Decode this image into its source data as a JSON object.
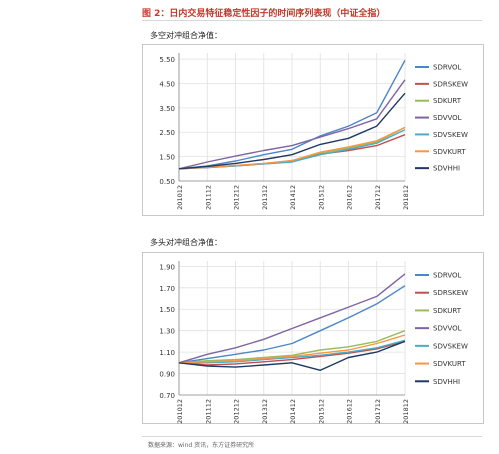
{
  "figure_title": "图 2：日内交易特征稳定性因子的时间序列表现（中证全指）",
  "source": "数据来源：wind 资讯，东方证券研究所",
  "colors": {
    "SDRVOL": "#4a86c8",
    "SDRSKEW": "#c0504d",
    "SDKURT": "#9bbb59",
    "SDVVOL": "#8064a2",
    "SDVSKEW": "#4bacc6",
    "SDVKURT": "#f79646",
    "SDVHHI": "#1f3864"
  },
  "chart_data": [
    {
      "type": "line",
      "title": "多空对冲组合净值：",
      "x": [
        "201012",
        "201112",
        "201212",
        "201312",
        "201412",
        "201512",
        "201612",
        "201712",
        "201812"
      ],
      "ylim": [
        0.5,
        5.75
      ],
      "yticks": [
        0.5,
        1.5,
        2.5,
        3.5,
        4.5,
        5.5
      ],
      "ytick_labels": [
        "0.50",
        "1.50",
        "2.50",
        "3.50",
        "4.50",
        "5.50"
      ],
      "grid": true,
      "legend": "right",
      "series": [
        {
          "name": "SDRVOL",
          "values": [
            1.0,
            1.12,
            1.32,
            1.58,
            1.8,
            2.35,
            2.75,
            3.3,
            5.45
          ]
        },
        {
          "name": "SDRSKEW",
          "values": [
            1.0,
            1.05,
            1.12,
            1.2,
            1.3,
            1.6,
            1.75,
            1.95,
            2.4
          ]
        },
        {
          "name": "SDKURT",
          "values": [
            1.0,
            1.06,
            1.13,
            1.22,
            1.32,
            1.65,
            1.85,
            2.1,
            2.7
          ]
        },
        {
          "name": "SDVVOL",
          "values": [
            1.0,
            1.28,
            1.52,
            1.75,
            1.95,
            2.3,
            2.65,
            3.05,
            4.65
          ]
        },
        {
          "name": "SDVSKEW",
          "values": [
            1.0,
            1.05,
            1.12,
            1.2,
            1.28,
            1.58,
            1.8,
            2.05,
            2.6
          ]
        },
        {
          "name": "SDVKURT",
          "values": [
            1.0,
            1.06,
            1.14,
            1.22,
            1.34,
            1.68,
            1.9,
            2.15,
            2.7
          ]
        },
        {
          "name": "SDVHHI",
          "values": [
            1.0,
            1.1,
            1.22,
            1.38,
            1.58,
            2.0,
            2.25,
            2.75,
            4.1
          ]
        }
      ]
    },
    {
      "type": "line",
      "title": "多头对冲组合净值：",
      "x": [
        "201012",
        "201112",
        "201212",
        "201312",
        "201412",
        "201512",
        "201612",
        "201712",
        "201812"
      ],
      "ylim": [
        0.7,
        1.95
      ],
      "yticks": [
        0.7,
        0.9,
        1.1,
        1.3,
        1.5,
        1.7,
        1.9
      ],
      "ytick_labels": [
        "0.70",
        "0.90",
        "1.10",
        "1.30",
        "1.50",
        "1.70",
        "1.90"
      ],
      "grid": true,
      "legend": "right",
      "series": [
        {
          "name": "SDRVOL",
          "values": [
            1.0,
            1.04,
            1.08,
            1.12,
            1.18,
            1.3,
            1.42,
            1.55,
            1.72
          ]
        },
        {
          "name": "SDRSKEW",
          "values": [
            1.0,
            0.98,
            0.99,
            1.01,
            1.03,
            1.06,
            1.09,
            1.13,
            1.2
          ]
        },
        {
          "name": "SDKURT",
          "values": [
            1.0,
            1.02,
            1.03,
            1.05,
            1.07,
            1.12,
            1.15,
            1.2,
            1.3
          ]
        },
        {
          "name": "SDVVOL",
          "values": [
            1.0,
            1.08,
            1.14,
            1.22,
            1.32,
            1.42,
            1.52,
            1.62,
            1.83
          ]
        },
        {
          "name": "SDVSKEW",
          "values": [
            1.0,
            1.0,
            1.01,
            1.03,
            1.05,
            1.07,
            1.1,
            1.14,
            1.21
          ]
        },
        {
          "name": "SDVKURT",
          "values": [
            1.0,
            1.01,
            1.02,
            1.04,
            1.06,
            1.09,
            1.12,
            1.18,
            1.26
          ]
        },
        {
          "name": "SDVHHI",
          "values": [
            1.0,
            0.97,
            0.96,
            0.98,
            1.0,
            0.93,
            1.05,
            1.1,
            1.2
          ]
        }
      ]
    }
  ]
}
